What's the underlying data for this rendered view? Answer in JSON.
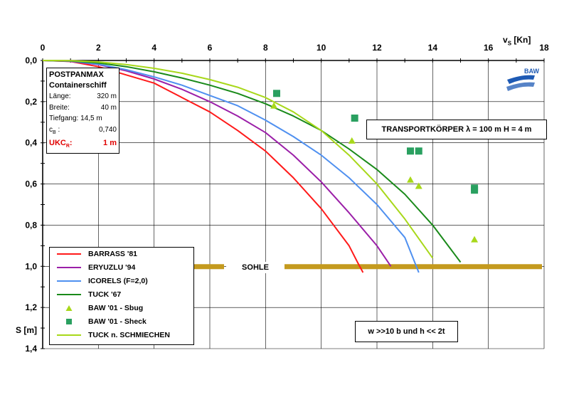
{
  "chart_data": {
    "type": "line",
    "x_axis": {
      "label_main": "v",
      "label_sub": "S",
      "label_unit": "[Kn]",
      "range": [
        0,
        18
      ],
      "ticks": [
        0,
        2,
        4,
        6,
        8,
        10,
        12,
        14,
        16,
        18
      ],
      "position": "top"
    },
    "y_axis": {
      "label": "S [m]",
      "range": [
        0,
        1.4
      ],
      "inverted": true,
      "ticks": [
        "0,0",
        "0,2",
        "0,4",
        "0,6",
        "0,8",
        "1,0",
        "1,2",
        "1,4"
      ],
      "tick_values": [
        0,
        0.2,
        0.4,
        0.6,
        0.8,
        1.0,
        1.2,
        1.4
      ]
    },
    "grid": true,
    "series": [
      {
        "name": "BARRASS '81",
        "color": "#ff1a1a",
        "style": "line",
        "x": [
          0,
          1,
          2,
          3,
          4,
          5,
          6,
          7,
          8,
          9,
          10,
          11,
          11.3,
          11.5
        ],
        "y": [
          0,
          0.005,
          0.03,
          0.07,
          0.11,
          0.18,
          0.25,
          0.34,
          0.44,
          0.57,
          0.72,
          0.9,
          0.98,
          1.03
        ]
      },
      {
        "name": "ERYUZLU '94",
        "color": "#9b1fa8",
        "style": "line",
        "x": [
          0,
          1,
          2,
          3,
          4,
          5,
          6,
          7,
          8,
          9,
          10,
          11,
          12,
          12.5
        ],
        "y": [
          0,
          0.004,
          0.02,
          0.05,
          0.09,
          0.14,
          0.2,
          0.27,
          0.35,
          0.46,
          0.59,
          0.74,
          0.9,
          1.0
        ]
      },
      {
        "name": "ICORELS (F=2,0)",
        "color": "#4f90f0",
        "style": "line",
        "x": [
          0,
          1,
          2,
          3,
          4,
          5,
          6,
          7,
          8,
          9,
          10,
          11,
          12,
          13,
          13.5
        ],
        "y": [
          0,
          0.003,
          0.018,
          0.045,
          0.08,
          0.12,
          0.17,
          0.22,
          0.29,
          0.37,
          0.46,
          0.57,
          0.7,
          0.86,
          1.03
        ]
      },
      {
        "name": "TUCK '67",
        "color": "#1a8a1a",
        "style": "line",
        "x": [
          0,
          1,
          2,
          3,
          4,
          5,
          6,
          7,
          8,
          9,
          10,
          11,
          12,
          13,
          14,
          15
        ],
        "y": [
          0,
          0.002,
          0.012,
          0.03,
          0.055,
          0.085,
          0.12,
          0.16,
          0.21,
          0.27,
          0.34,
          0.43,
          0.53,
          0.65,
          0.8,
          0.98
        ]
      },
      {
        "name": "TUCK n. SCHMIECHEN",
        "color": "#a8d81a",
        "style": "line",
        "x": [
          0,
          1,
          2,
          3,
          4,
          5,
          6,
          7,
          8,
          9,
          10,
          11,
          12,
          13,
          14
        ],
        "y": [
          0,
          0.001,
          0.007,
          0.02,
          0.038,
          0.062,
          0.093,
          0.13,
          0.18,
          0.25,
          0.34,
          0.46,
          0.6,
          0.77,
          0.96
        ]
      },
      {
        "name": "BAW '01 - Sbug",
        "color": "#a8d81a",
        "style": "triangle",
        "x": [
          8.3,
          11.1,
          13.2,
          13.5,
          15.5
        ],
        "y": [
          0.22,
          0.39,
          0.58,
          0.61,
          0.87
        ]
      },
      {
        "name": "BAW '01 - Sheck",
        "color": "#2aa060",
        "style": "square",
        "x": [
          8.4,
          11.2,
          13.2,
          13.5,
          15.5,
          15.5
        ],
        "y": [
          0.16,
          0.28,
          0.44,
          0.44,
          0.62,
          0.63
        ]
      }
    ],
    "sohle": {
      "label": "SOHLE",
      "y": 1.0,
      "color": "#c49a1e"
    },
    "info_box": {
      "title1": "POSTPANMAX",
      "title2": "Containerschiff",
      "rows": [
        {
          "label": "Länge:",
          "value": "320 m"
        },
        {
          "label": "Breite:",
          "value": "40 m"
        },
        {
          "label": "Tiefgang: 14,5 m",
          "value": ""
        },
        {
          "label": "c",
          "sub": "B",
          "label_tail": " :",
          "value": "0,740"
        }
      ],
      "ukc_label": "UKC",
      "ukc_sub": "R",
      "ukc_tail": ":",
      "ukc_value": "1 m"
    },
    "annotations": {
      "transport": "TRANSPORTKÖRPER  λ = 100 m H = 4 m",
      "condition": "w >>10 b und h << 2t"
    },
    "logo": {
      "text": "BAW",
      "color": "#1e5ab4"
    }
  }
}
